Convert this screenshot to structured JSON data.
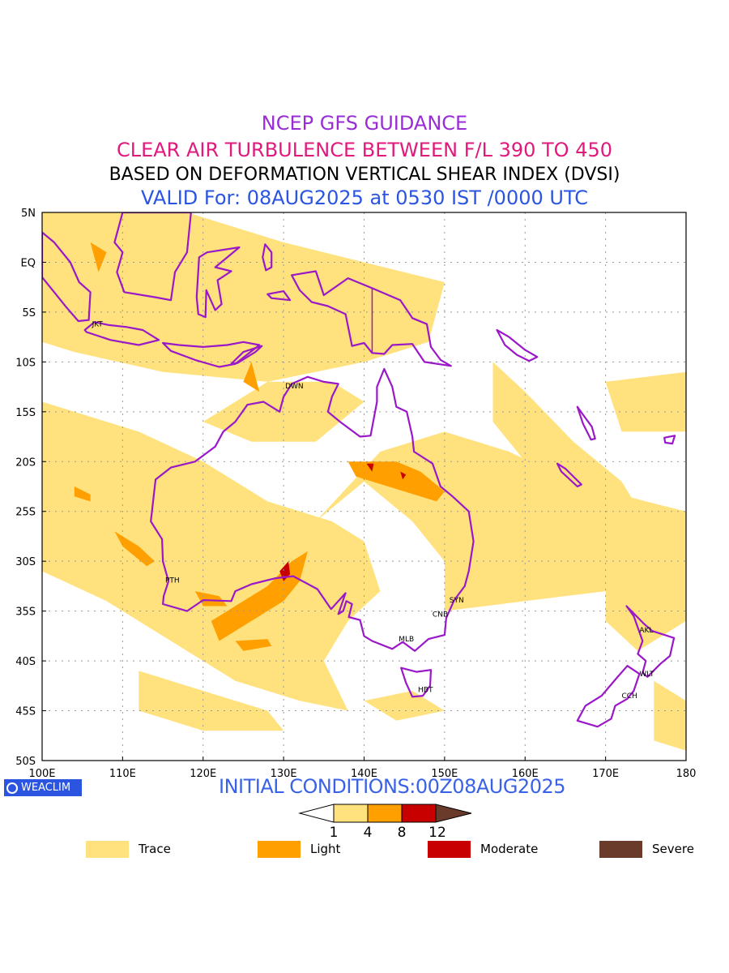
{
  "titles": {
    "line1": "NCEP GFS GUIDANCE",
    "line2": "CLEAR AIR TURBULENCE BETWEEN F/L 390 TO 450",
    "line3": "BASED ON DEFORMATION VERTICAL SHEAR INDEX (DVSI)",
    "line4": "VALID For: 08AUG2025 at 0530 IST /0000 UTC"
  },
  "title_colors": {
    "line1": "#9a2cd6",
    "line2": "#e0197d",
    "line3": "#000000",
    "line4": "#2b55e0"
  },
  "map": {
    "lon_ticks": [
      "100E",
      "110E",
      "120E",
      "130E",
      "140E",
      "150E",
      "160E",
      "170E",
      "180"
    ],
    "lat_ticks": [
      "5N",
      "EQ",
      "5S",
      "10S",
      "15S",
      "20S",
      "25S",
      "30S",
      "35S",
      "40S",
      "45S",
      "50S"
    ],
    "stations": [
      {
        "code": "JKT",
        "lon": 106.8,
        "lat": -6.2
      },
      {
        "code": "DWN",
        "lon": 130.8,
        "lat": -12.4
      },
      {
        "code": "PTH",
        "lon": 115.9,
        "lat": -31.9
      },
      {
        "code": "SYN",
        "lon": 151.2,
        "lat": -33.9
      },
      {
        "code": "CNB",
        "lon": 149.1,
        "lat": -35.3
      },
      {
        "code": "MLB",
        "lon": 144.9,
        "lat": -37.8
      },
      {
        "code": "HBT",
        "lon": 147.3,
        "lat": -42.9
      },
      {
        "code": "AKL",
        "lon": 174.8,
        "lat": -36.9
      },
      {
        "code": "WLT",
        "lon": 174.8,
        "lat": -41.3
      },
      {
        "code": "CCH",
        "lon": 172.6,
        "lat": -43.5
      }
    ],
    "colors": {
      "coast": "#9a18c8",
      "trace": "#ffe27e",
      "light": "#ffa000",
      "moderate": "#c80000",
      "grid": "#999999"
    }
  },
  "logo": {
    "text": "WEACLIM"
  },
  "initial_conditions": "INITIAL CONDITIONS:00Z08AUG2025",
  "colorbar": {
    "ticks": [
      "1",
      "4",
      "8",
      "12"
    ]
  },
  "legend": [
    {
      "label": "Trace",
      "color": "#ffe27e"
    },
    {
      "label": "Light",
      "color": "#ffa000"
    },
    {
      "label": "Moderate",
      "color": "#c80000"
    },
    {
      "label": "Severe",
      "color": "#6a3a2a"
    }
  ]
}
